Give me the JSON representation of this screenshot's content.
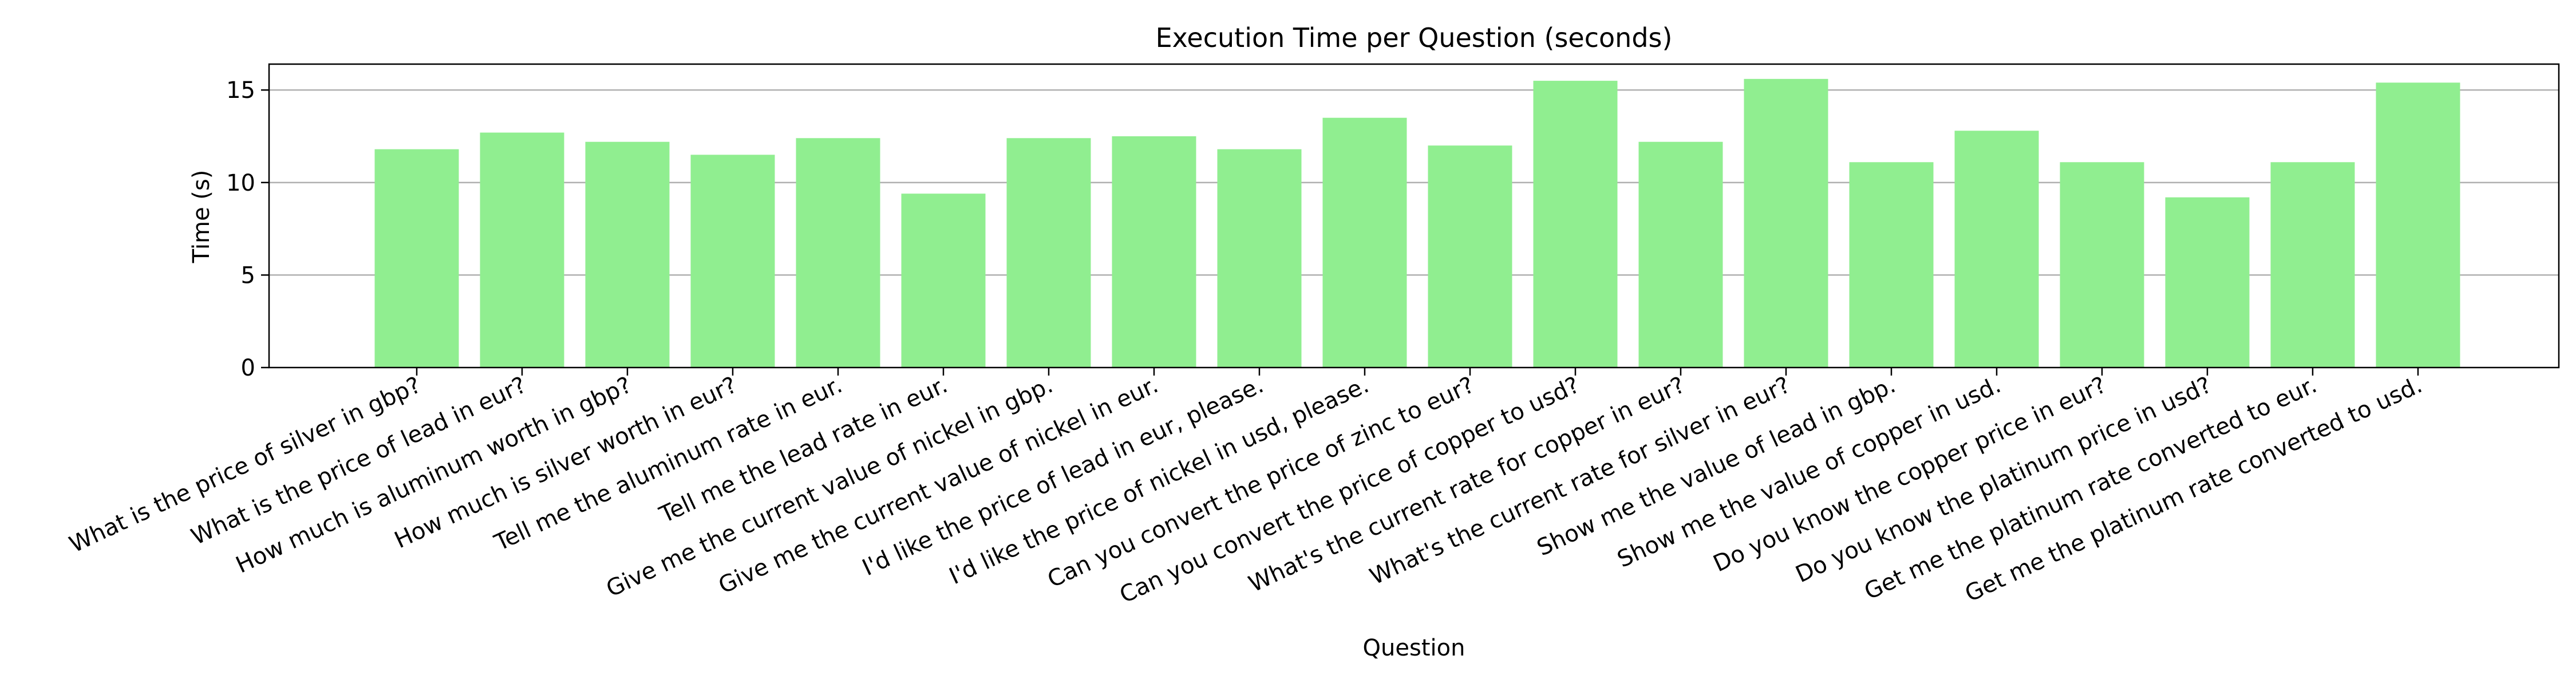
{
  "chart_data": {
    "type": "bar",
    "title": "Execution Time per Question (seconds)",
    "xlabel": "Question",
    "ylabel": "Time (s)",
    "ylim": [
      0,
      16.4
    ],
    "yticks": [
      0,
      5,
      10,
      15
    ],
    "grid": "y",
    "bar_color": "#90ee90",
    "categories": [
      "What is the price of silver in gbp?",
      "What is the price of lead in eur?",
      "How much is aluminum worth in gbp?",
      "How much is silver worth in eur?",
      "Tell me the aluminum rate in eur.",
      "Tell me the lead rate in eur.",
      "Give me the current value of nickel in gbp.",
      "Give me the current value of nickel in eur.",
      "I'd like the price of lead in eur, please.",
      "I'd like the price of nickel in usd, please.",
      "Can you convert the price of zinc to eur?",
      "Can you convert the price of copper to usd?",
      "What's the current rate for copper in eur?",
      "What's the current rate for silver in eur?",
      "Show me the value of lead in gbp.",
      "Show me the value of copper in usd.",
      "Do you know the copper price in eur?",
      "Do you know the platinum price in usd?",
      "Get me the platinum rate converted to eur.",
      "Get me the platinum rate converted to usd."
    ],
    "values": [
      11.8,
      12.7,
      12.2,
      11.5,
      12.4,
      9.4,
      12.4,
      12.5,
      11.8,
      13.5,
      12.0,
      15.5,
      12.2,
      15.6,
      11.1,
      12.8,
      11.1,
      9.2,
      11.1,
      15.4
    ]
  }
}
